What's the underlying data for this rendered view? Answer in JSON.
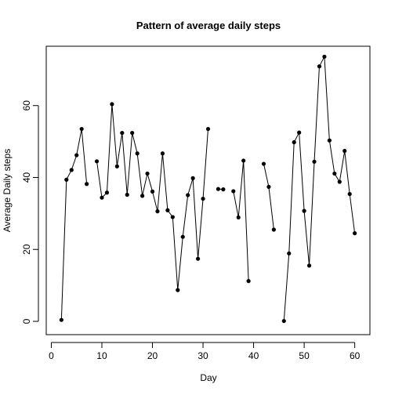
{
  "chart_data": {
    "type": "line",
    "title": "Pattern of average daily steps",
    "xlabel": "Day",
    "ylabel": "Average Daily steps",
    "xlim": [
      -1,
      63
    ],
    "ylim": [
      -3.7,
      76.5
    ],
    "xticks": [
      0,
      10,
      20,
      30,
      40,
      50,
      60
    ],
    "yticks": [
      0,
      20,
      40,
      60
    ],
    "xtick_labels": [
      "0",
      "10",
      "20",
      "30",
      "40",
      "50",
      "60"
    ],
    "ytick_labels": [
      "0",
      "20",
      "40",
      "60"
    ],
    "grid": false,
    "markers": true,
    "series": [
      {
        "x": [
          2,
          3,
          4,
          5,
          6,
          7,
          8,
          9,
          10,
          11,
          12,
          13,
          14,
          15,
          16,
          17,
          18,
          19,
          20,
          21,
          22,
          23,
          24,
          25,
          26,
          27,
          28,
          29,
          30,
          31,
          32,
          33,
          34,
          35,
          36,
          37,
          38,
          39,
          40,
          41,
          42,
          43,
          44,
          45,
          46,
          47,
          48,
          49,
          50,
          51,
          52,
          53,
          54,
          55,
          56,
          57,
          58,
          59,
          60
        ],
        "values": [
          0.4,
          39.4,
          42.1,
          46.2,
          53.5,
          38.2,
          null,
          44.5,
          34.4,
          35.8,
          60.4,
          43.1,
          52.4,
          35.2,
          52.4,
          46.7,
          34.9,
          41.1,
          36.1,
          30.6,
          46.7,
          30.9,
          29.0,
          8.7,
          23.5,
          35.1,
          39.8,
          17.4,
          34.1,
          53.5,
          null,
          36.8,
          36.7,
          null,
          36.2,
          28.9,
          44.7,
          11.2,
          null,
          null,
          43.8,
          37.4,
          25.5,
          null,
          0.1,
          18.9,
          49.8,
          52.5,
          30.7,
          15.5,
          44.4,
          70.9,
          73.6,
          50.3,
          41.1,
          38.8,
          47.4,
          35.4,
          24.5
        ],
        "color": "#000000"
      }
    ]
  }
}
